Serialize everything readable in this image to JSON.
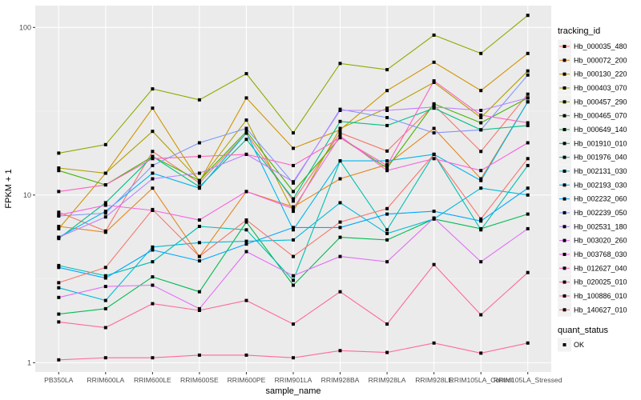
{
  "chart_data": {
    "type": "line",
    "xlabel": "sample_name",
    "ylabel": "FPKM + 1",
    "y_scale": "log10",
    "ylim": [
      0.88,
      135
    ],
    "grid": true,
    "legend_position": "right",
    "categories": [
      "PB350LA",
      "RRIM600LA",
      "RRIM600LE",
      "RRIM600SE",
      "RRIM600PE",
      "RRIM901LA",
      "RRIM928BA",
      "RRIM928LA",
      "RRIM928LE",
      "RRIM105LA_Control",
      "RRIM105LA_Stressed"
    ],
    "y_ticks": [
      1,
      10,
      100
    ],
    "y_tick_labels": [
      "1",
      "10",
      "100"
    ],
    "legend": {
      "color_title": "tracking_id",
      "shape_title": "quant_status",
      "shape_items": [
        "OK"
      ]
    },
    "series": [
      {
        "name": "Hb_000035_480",
        "color": "#F8766D",
        "values": [
          7.9,
          6.1,
          18.2,
          11.8,
          23.4,
          9.2,
          23.5,
          18.3,
          34.5,
          18.2,
          40.0
        ]
      },
      {
        "name": "Hb_000072_200",
        "color": "#E7851E",
        "values": [
          6.5,
          6.0,
          11.0,
          4.3,
          10.5,
          8.5,
          12.5,
          15.2,
          25.0,
          12.5,
          36.0
        ]
      },
      {
        "name": "Hb_000130_220",
        "color": "#D09400",
        "values": [
          6.3,
          13.5,
          33.0,
          12.0,
          38.0,
          19.0,
          24.5,
          42.0,
          62.0,
          42.0,
          70.0
        ]
      },
      {
        "name": "Hb_000403_070",
        "color": "#B2A100",
        "values": [
          14.5,
          13.5,
          24.0,
          12.2,
          28.0,
          8.0,
          25.0,
          33.0,
          47.0,
          29.0,
          55.0
        ]
      },
      {
        "name": "Hb_000457_290",
        "color": "#89AC00",
        "values": [
          17.8,
          20.0,
          43.0,
          37.0,
          53.0,
          23.5,
          61.0,
          56.0,
          90.0,
          70.0,
          118.0
        ]
      },
      {
        "name": "Hb_000465_070",
        "color": "#45B500",
        "values": [
          14.0,
          11.5,
          17.0,
          12.2,
          24.0,
          10.5,
          22.0,
          14.5,
          35.0,
          27.0,
          38.0
        ]
      },
      {
        "name": "Hb_000649_140",
        "color": "#00BC51",
        "values": [
          1.95,
          2.1,
          3.25,
          2.65,
          6.9,
          2.9,
          5.6,
          5.4,
          7.2,
          6.3,
          7.7
        ]
      },
      {
        "name": "Hb_001910_010",
        "color": "#00C087",
        "values": [
          5.5,
          9.0,
          17.0,
          11.2,
          21.5,
          9.5,
          27.5,
          26.0,
          33.0,
          24.5,
          26.0
        ]
      },
      {
        "name": "Hb_001976_040",
        "color": "#00C0B2",
        "values": [
          3.8,
          3.3,
          4.0,
          6.5,
          6.2,
          3.1,
          16.0,
          6.2,
          17.5,
          6.2,
          15.0
        ]
      },
      {
        "name": "Hb_002131_030",
        "color": "#00BCD6",
        "values": [
          2.8,
          2.35,
          4.9,
          5.2,
          5.3,
          5.4,
          9.0,
          5.9,
          7.2,
          11.0,
          10.0
        ]
      },
      {
        "name": "Hb_002193_030",
        "color": "#00B5EE",
        "values": [
          5.6,
          8.0,
          13.5,
          11.0,
          23.5,
          6.2,
          16.0,
          16.0,
          17.5,
          12.2,
          36.0
        ]
      },
      {
        "name": "Hb_002232_060",
        "color": "#00A7FF",
        "values": [
          3.7,
          3.2,
          4.7,
          4.05,
          5.1,
          6.4,
          6.4,
          7.7,
          8.0,
          7.0,
          11.0
        ]
      },
      {
        "name": "Hb_002239_050",
        "color": "#7F96FF",
        "values": [
          7.5,
          7.8,
          15.0,
          20.5,
          25.0,
          11.8,
          32.5,
          29.0,
          23.5,
          24.5,
          52.0
        ]
      },
      {
        "name": "Hb_002531_180",
        "color": "#BC81FF",
        "values": [
          5.6,
          7.4,
          12.5,
          13.5,
          17.5,
          12.0,
          32.0,
          32.0,
          33.5,
          32.0,
          38.0
        ]
      },
      {
        "name": "Hb_003020_260",
        "color": "#E26EF7",
        "values": [
          2.45,
          2.85,
          2.9,
          2.1,
          4.6,
          3.3,
          4.3,
          4.0,
          7.3,
          4.0,
          6.3
        ]
      },
      {
        "name": "Hb_003768_030",
        "color": "#F863DF",
        "values": [
          7.6,
          8.7,
          8.1,
          7.1,
          10.5,
          8.3,
          22.5,
          14.0,
          16.5,
          14.0,
          20.5
        ]
      },
      {
        "name": "Hb_012627_040",
        "color": "#FF62BF",
        "values": [
          10.5,
          11.5,
          16.5,
          17.0,
          17.5,
          15.0,
          22.0,
          15.0,
          48.0,
          30.0,
          27.0
        ]
      },
      {
        "name": "Hb_020025_010",
        "color": "#FF6A98",
        "values": [
          1.75,
          1.62,
          2.25,
          2.05,
          2.35,
          1.7,
          2.65,
          1.7,
          3.85,
          1.93,
          3.45
        ]
      },
      {
        "name": "Hb_100886_010",
        "color": "#FF6A98",
        "values": [
          1.04,
          1.07,
          1.07,
          1.11,
          1.11,
          1.07,
          1.18,
          1.15,
          1.31,
          1.14,
          1.31
        ]
      },
      {
        "name": "Hb_140627_010",
        "color": "#F8766D",
        "values": [
          3.0,
          3.7,
          8.2,
          4.3,
          7.1,
          4.3,
          6.9,
          8.3,
          17.5,
          7.2,
          16.5
        ]
      }
    ]
  }
}
